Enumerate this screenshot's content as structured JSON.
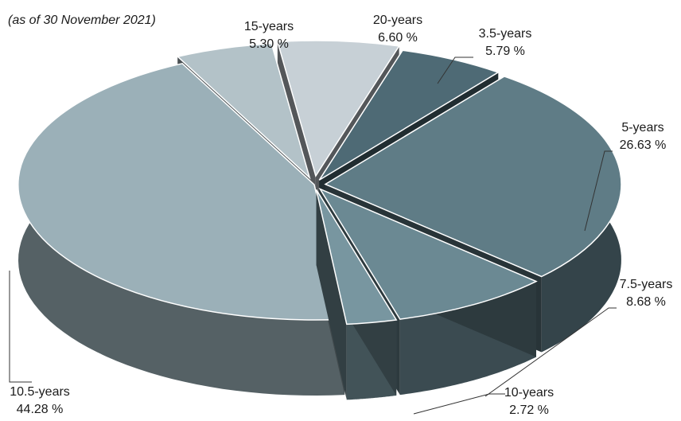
{
  "chart_data": {
    "type": "pie",
    "style": "3d-exploded",
    "subtitle": "(as of 30 November 2021)",
    "slices": [
      {
        "name": "20-years",
        "value": 6.6,
        "value_label": "6.60 %",
        "color": "#c7d0d6"
      },
      {
        "name": "3.5-years",
        "value": 5.79,
        "value_label": "5.79 %",
        "color": "#4e6a75"
      },
      {
        "name": "5-years",
        "value": 26.63,
        "value_label": "26.63 %",
        "color": "#5f7c86"
      },
      {
        "name": "7.5-years",
        "value": 8.68,
        "value_label": "8.68 %",
        "color": "#6b8993"
      },
      {
        "name": "10-years",
        "value": 2.72,
        "value_label": "2.72 %",
        "color": "#7896a0"
      },
      {
        "name": "10.5-years",
        "value": 44.28,
        "value_label": "44.28 %",
        "color": "#9bb0b8"
      },
      {
        "name": "15-years",
        "value": 5.3,
        "value_label": "5.30 %",
        "color": "#b3c2c8"
      }
    ]
  }
}
